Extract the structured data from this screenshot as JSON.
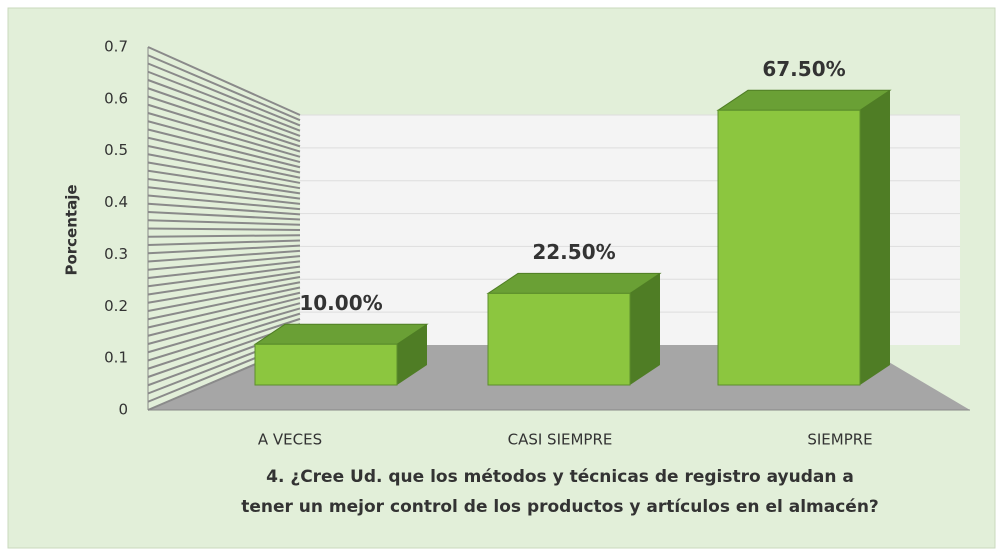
{
  "chart_data": {
    "type": "bar3d",
    "categories": [
      "A VECES",
      "CASI SIEMPRE",
      "SIEMPRE"
    ],
    "values": [
      0.1,
      0.225,
      0.675
    ],
    "value_labels": [
      "10.00%",
      "22.50%",
      "67.50%"
    ],
    "color": "#8cc63f",
    "ylabel": "Porcentaje",
    "xlabel": "4. ¿Cree Ud. que los métodos y técnicas de registro ayudan a tener un mejor control de los productos y artículos en el almacén?",
    "ylim": [
      0,
      0.7
    ],
    "yticks": [
      0,
      0.1,
      0.2,
      0.3,
      0.4,
      0.5,
      0.6,
      0.7
    ],
    "grid": true
  }
}
